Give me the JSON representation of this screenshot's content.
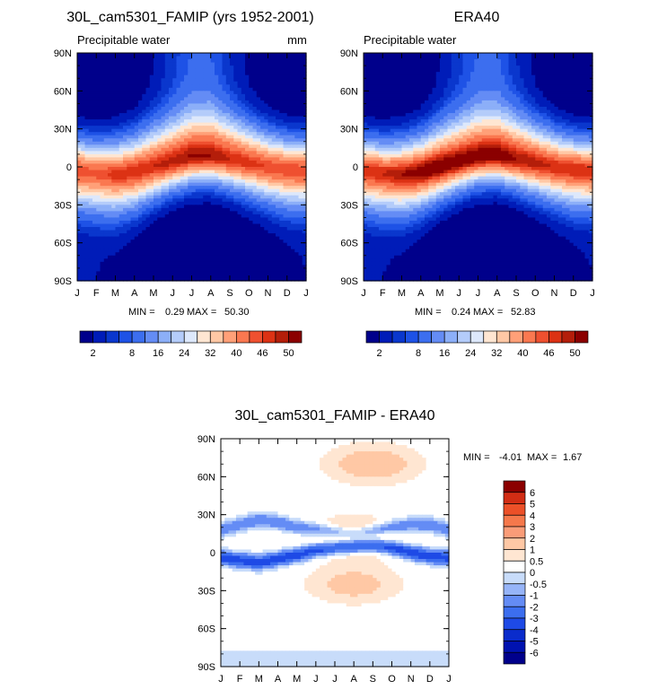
{
  "panels": {
    "model": {
      "title": "30L_cam5301_FAMIP (yrs 1952-2001)",
      "subtitle": "Precipitable water",
      "units": "mm",
      "min_label": "MIN =",
      "min_value": "0.29",
      "max_label": "MAX =",
      "max_value": "50.30"
    },
    "obs": {
      "title": "ERA40",
      "subtitle": "Precipitable water",
      "min_label": "MIN =",
      "min_value": "0.24",
      "max_label": "MAX =",
      "max_value": "52.83"
    },
    "diff": {
      "title": "30L_cam5301_FAMIP - ERA40",
      "min_label": "MIN =",
      "min_value": "-4.01",
      "max_label": "MAX =",
      "max_value": "1.67"
    }
  },
  "chart_data": [
    {
      "type": "heatmap",
      "name": "model",
      "title": "30L_cam5301_FAMIP (yrs 1952-2001)",
      "subtitle": "Precipitable water",
      "units": "mm",
      "x_ticks": [
        "J",
        "F",
        "M",
        "A",
        "M",
        "J",
        "J",
        "A",
        "S",
        "O",
        "N",
        "D",
        "J"
      ],
      "y_ticks": [
        "90N",
        "60N",
        "30N",
        "0",
        "30S",
        "60S",
        "90S"
      ],
      "y_range": [
        90,
        -90
      ],
      "eq_peak": [
        46,
        45,
        47,
        48,
        48,
        49,
        50.3,
        50,
        48,
        47,
        46,
        46,
        46
      ],
      "eq_lat": [
        -3,
        -5,
        -6,
        -4,
        0,
        4,
        8,
        9,
        6,
        3,
        0,
        -2,
        -3
      ],
      "nh_width": [
        22,
        22,
        23,
        25,
        28,
        30,
        32,
        32,
        30,
        27,
        24,
        22,
        22
      ],
      "sh_width": [
        26,
        27,
        27,
        25,
        22,
        20,
        19,
        19,
        20,
        22,
        24,
        26,
        26
      ],
      "polar_n": [
        0.3,
        0.3,
        0.4,
        0.6,
        2,
        5,
        8,
        8,
        4,
        1.5,
        0.5,
        0.3,
        0.3
      ],
      "polar_s": [
        2,
        2,
        1.5,
        1,
        0.5,
        0.3,
        0.29,
        0.3,
        0.4,
        0.6,
        1,
        1.5,
        2
      ],
      "min": 0.29,
      "max": 50.3
    },
    {
      "type": "heatmap",
      "name": "obs",
      "title": "ERA40",
      "subtitle": "Precipitable water",
      "x_ticks": [
        "J",
        "F",
        "M",
        "A",
        "M",
        "J",
        "J",
        "A",
        "S",
        "O",
        "N",
        "D",
        "J"
      ],
      "y_ticks": [
        "90N",
        "60N",
        "30N",
        "0",
        "30S",
        "60S",
        "90S"
      ],
      "y_range": [
        90,
        -90
      ],
      "eq_peak": [
        48,
        48,
        50,
        52,
        52.8,
        52,
        52,
        52,
        50,
        49,
        48,
        48,
        48
      ],
      "eq_lat": [
        -3,
        -5,
        -6,
        -4,
        0,
        4,
        8,
        9,
        6,
        3,
        0,
        -2,
        -3
      ],
      "nh_width": [
        22,
        22,
        23,
        25,
        28,
        30,
        32,
        32,
        30,
        27,
        24,
        22,
        22
      ],
      "sh_width": [
        26,
        27,
        27,
        25,
        22,
        20,
        19,
        19,
        20,
        22,
        24,
        26,
        26
      ],
      "polar_n": [
        0.24,
        0.3,
        0.4,
        0.6,
        2,
        5,
        8,
        8,
        4,
        1.5,
        0.5,
        0.3,
        0.24
      ],
      "polar_s": [
        2,
        2,
        1.5,
        1,
        0.5,
        0.3,
        0.25,
        0.3,
        0.4,
        0.6,
        1,
        1.5,
        2
      ],
      "min": 0.24,
      "max": 52.83
    },
    {
      "type": "heatmap",
      "name": "difference",
      "title": "30L_cam5301_FAMIP - ERA40",
      "x_ticks": [
        "J",
        "F",
        "M",
        "A",
        "M",
        "J",
        "J",
        "A",
        "S",
        "O",
        "N",
        "D",
        "J"
      ],
      "y_ticks": [
        "90N",
        "60N",
        "30N",
        "0",
        "30S",
        "60S",
        "90S"
      ],
      "y_range": [
        90,
        -90
      ],
      "features": [
        {
          "kind": "negative_band",
          "lat": [
            18,
            22,
            26,
            24,
            20,
            18,
            16,
            15,
            17,
            20,
            22,
            22,
            18
          ],
          "value": -2.5
        },
        {
          "kind": "negative_band",
          "lat": [
            -4,
            -6,
            -8,
            -5,
            -2,
            2,
            4,
            5,
            6,
            4,
            0,
            -3,
            -4
          ],
          "value": -4.0
        },
        {
          "kind": "positive_patch",
          "lat": 70,
          "month": 8,
          "value": 1.5
        },
        {
          "kind": "positive_patch",
          "lat": 12,
          "month": 7,
          "value": 1.6
        },
        {
          "kind": "positive_patch",
          "lat": -25,
          "month": 7,
          "value": 1.2
        }
      ],
      "min": -4.01,
      "max": 1.67
    }
  ],
  "colorbar_abs": {
    "labels": [
      "2",
      "8",
      "16",
      "24",
      "32",
      "40",
      "46",
      "50"
    ],
    "levels": [
      2,
      4,
      6,
      8,
      12,
      16,
      20,
      24,
      28,
      32,
      36,
      40,
      44,
      46,
      48,
      50
    ],
    "colors": [
      "#00008b",
      "#001cb8",
      "#0a37cd",
      "#1e52e6",
      "#3c6eef",
      "#648cf5",
      "#8caff8",
      "#b4ccfa",
      "#dde8fb",
      "#ffe6d2",
      "#ffc8a5",
      "#ffa078",
      "#fa7850",
      "#ef5030",
      "#dc3214",
      "#b41e0a",
      "#8b0000"
    ]
  },
  "colorbar_diff": {
    "labels": [
      "6",
      "5",
      "4",
      "3",
      "2",
      "1",
      "0.5",
      "0",
      "-0.5",
      "-1",
      "-2",
      "-3",
      "-4",
      "-5",
      "-6"
    ],
    "levels": [
      -6,
      -5,
      -4,
      -3,
      -2,
      -1,
      -0.5,
      0,
      0.5,
      1,
      2,
      3,
      4,
      5,
      6
    ],
    "colors": [
      "#00008b",
      "#0012b0",
      "#0a2ccc",
      "#1e4ae6",
      "#3c6eef",
      "#648cf5",
      "#96b4f8",
      "#c8dcfa",
      "#ffffff",
      "#ffe6d2",
      "#ffc8a5",
      "#fa9c78",
      "#f5784b",
      "#ec5028",
      "#d22d14",
      "#8b0000"
    ]
  }
}
